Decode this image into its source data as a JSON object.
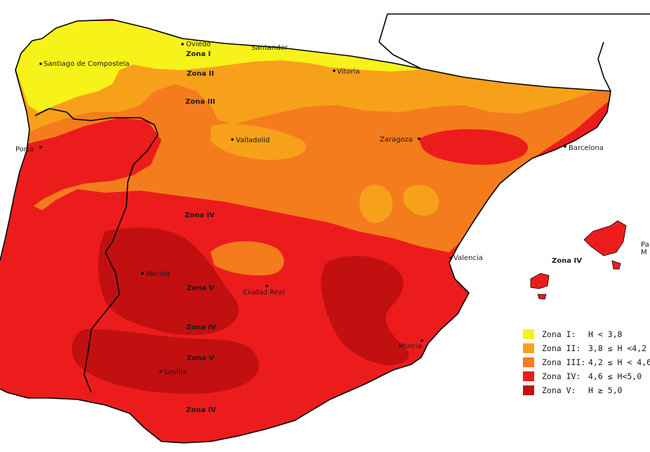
{
  "colors": {
    "zone1": "#f7f21a",
    "zone2": "#f7a11a",
    "zone3": "#f47c1c",
    "zone4": "#ed1c1c",
    "zone5": "#c21010",
    "coast": "#000000",
    "sea": "#ffffff"
  },
  "zone_labels": {
    "zona_i": "Zona I",
    "zona_ii": "Zona II",
    "zona_iii": "Zona III",
    "zona_iv_centre": "Zona IV",
    "zona_v_mid": "Zona V",
    "zona_iv_south": "Zona IV",
    "zona_v_south": "Zona V",
    "zona_iv_coast": "Zona IV",
    "zona_iv_islands": "Zona IV"
  },
  "cities": {
    "oviedo": "Oviedo",
    "santander": "Santander",
    "santiago": "Santiago de Compostela",
    "vitoria": "Vitoria",
    "porto": "Porto",
    "valladolid": "Valladolid",
    "zaragoza": "Zaragoza",
    "barcelona": "Barcelona",
    "valencia": "Valencia",
    "merida": "Merida",
    "ciudad_real": "Ciudad Real",
    "murcia": "Murcia",
    "sevilla": "Sevilla",
    "palma_1": "Pa",
    "palma_2": "M"
  },
  "legend": [
    {
      "label": "Zona I:",
      "range": "H < 3,8",
      "color": "#f7f21a"
    },
    {
      "label": "Zona II:",
      "range": "3,8 ≤ H <4,2",
      "color": "#f7a11a"
    },
    {
      "label": "Zona III:",
      "range": "4,2 ≤ H < 4,6",
      "color": "#f47c1c"
    },
    {
      "label": "Zona IV:",
      "range": "4,6 ≤ H<5,0",
      "color": "#ed1c1c"
    },
    {
      "label": "Zona V:",
      "range": "H ≥ 5,0",
      "color": "#c21010"
    }
  ]
}
